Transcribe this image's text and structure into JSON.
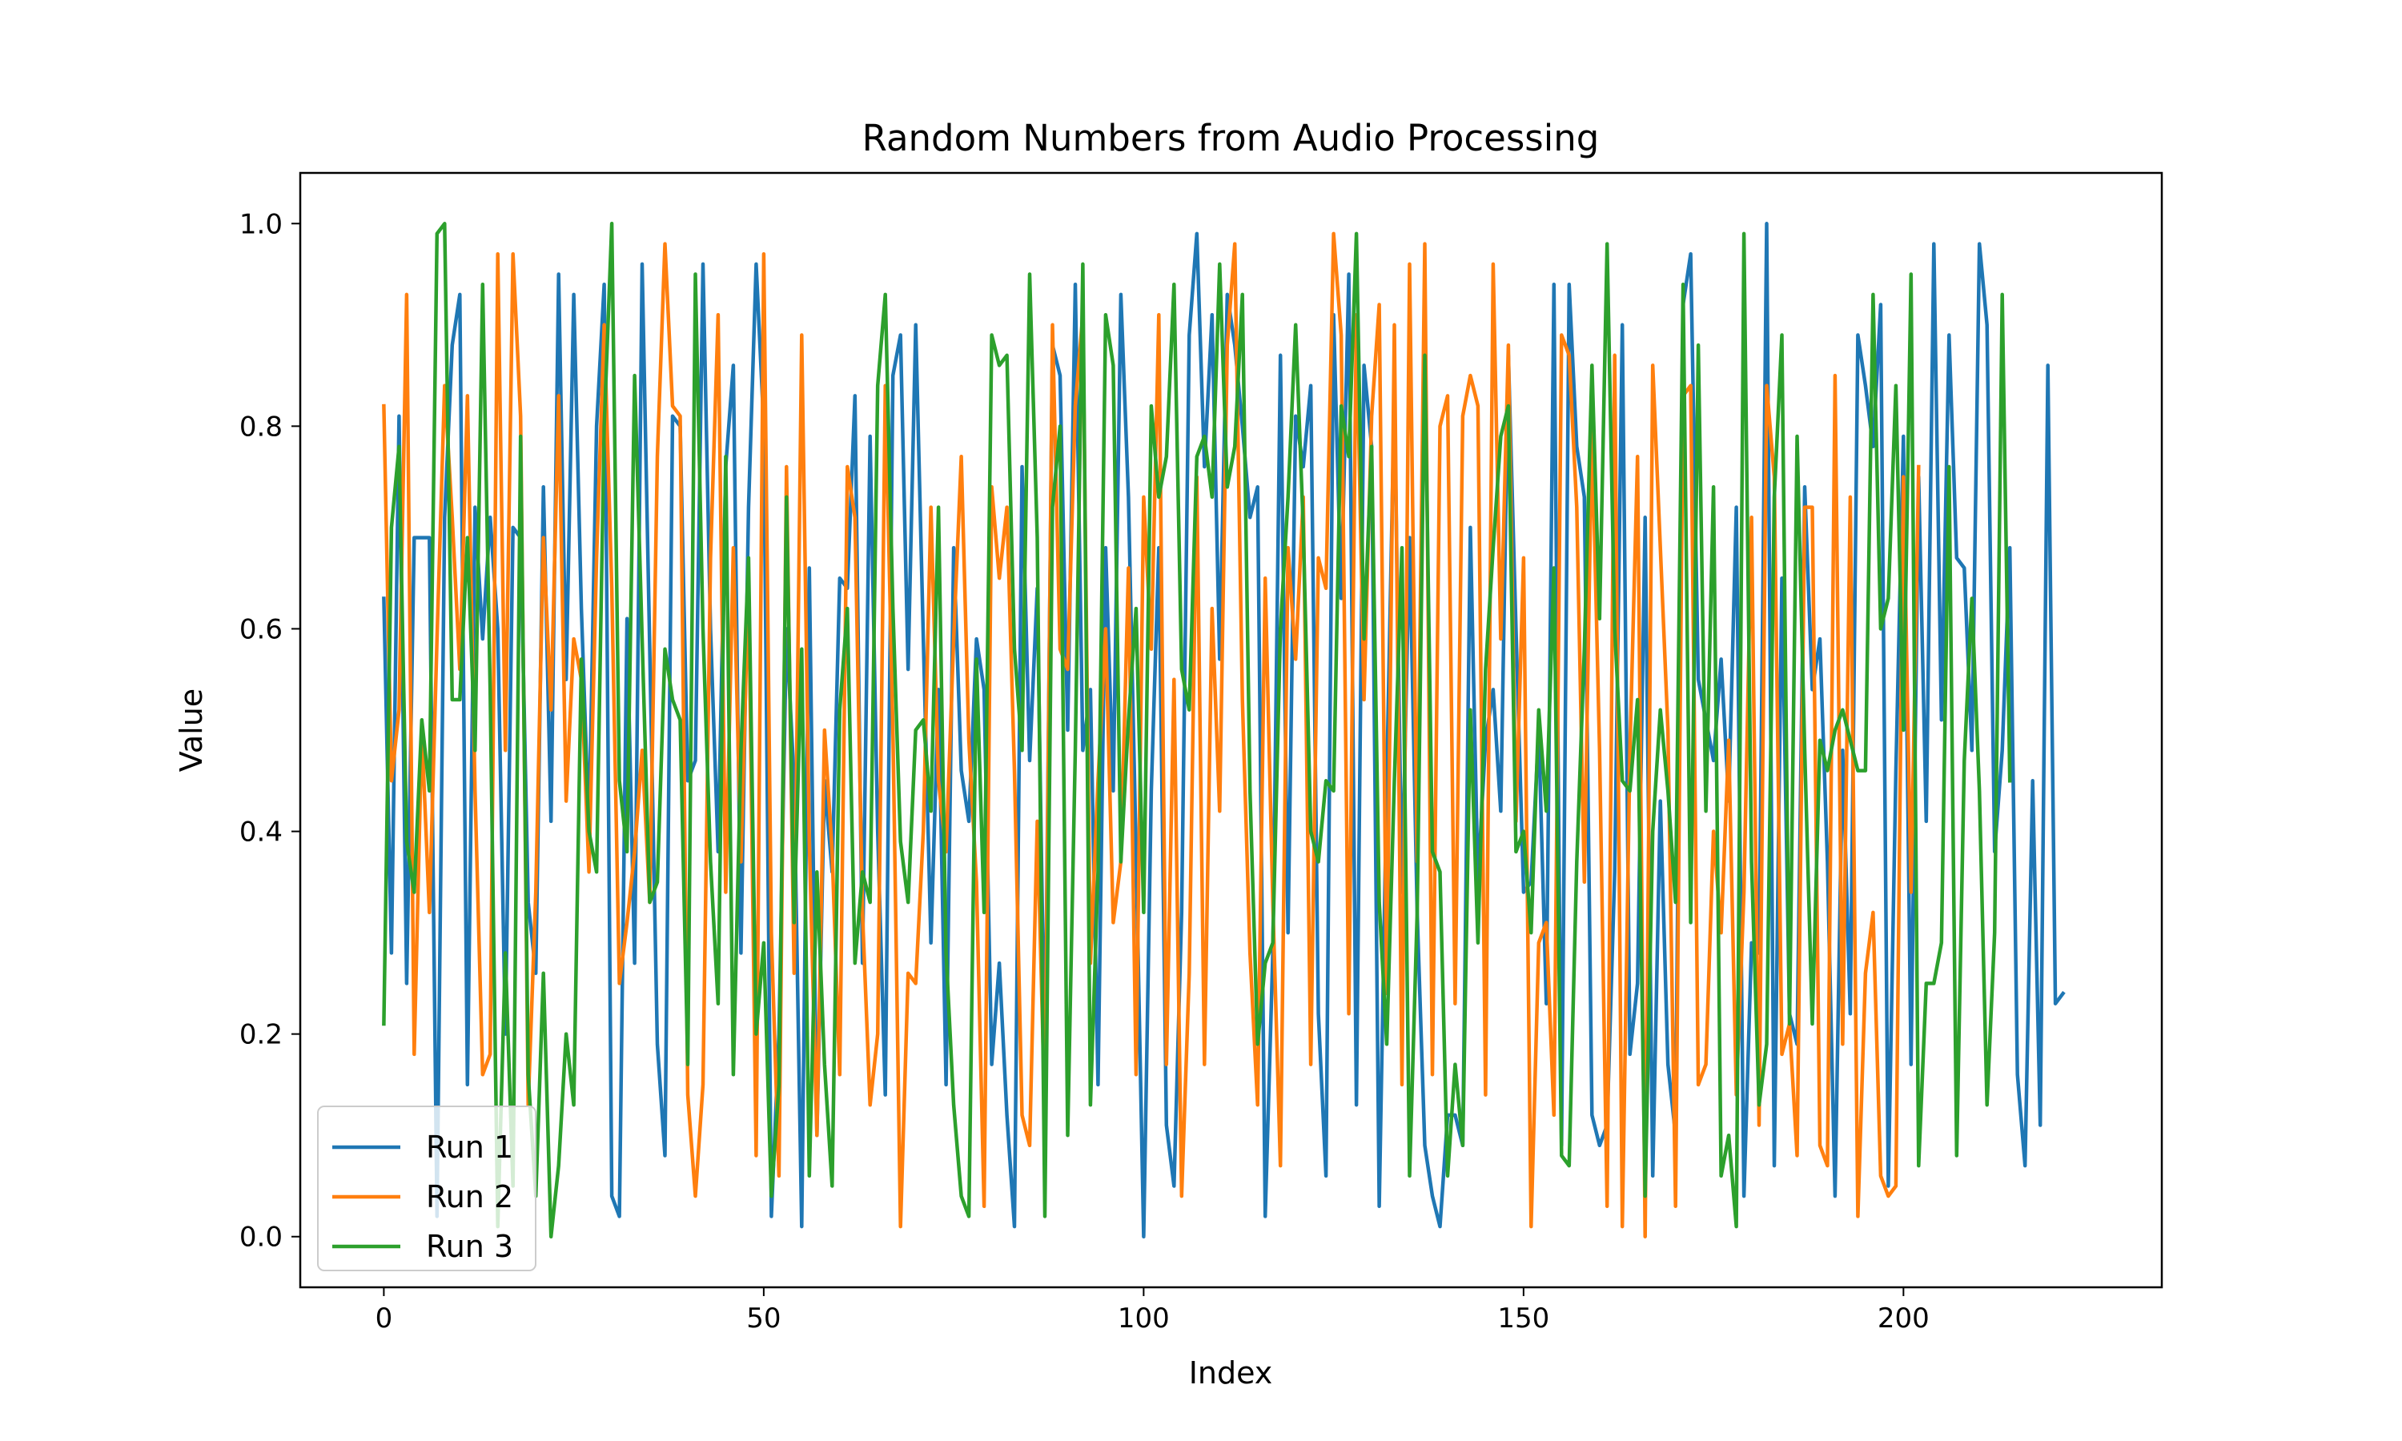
{
  "chart_data": {
    "type": "line",
    "title": "Random Numbers from Audio Processing",
    "xlabel": "Index",
    "ylabel": "Value",
    "xlim": [
      -11,
      234
    ],
    "ylim": [
      -0.05,
      1.05
    ],
    "xticks": [
      0,
      50,
      100,
      150,
      200
    ],
    "yticks": [
      0.0,
      0.2,
      0.4,
      0.6,
      0.8,
      1.0
    ],
    "ytick_labels": [
      "0.0",
      "0.2",
      "0.4",
      "0.6",
      "0.8",
      "1.0"
    ],
    "grid": false,
    "legend_position": "lower-left",
    "series": [
      {
        "name": "Run 1",
        "color": "#1f77b4",
        "values": [
          0.63,
          0.28,
          0.81,
          0.25,
          0.69,
          0.69,
          0.69,
          0.02,
          0.71,
          0.88,
          0.93,
          0.15,
          0.72,
          0.59,
          0.71,
          0.6,
          0.2,
          0.7,
          0.69,
          0.33,
          0.26,
          0.74,
          0.41,
          0.95,
          0.55,
          0.93,
          0.62,
          0.4,
          0.8,
          0.94,
          0.04,
          0.02,
          0.61,
          0.27,
          0.96,
          0.58,
          0.19,
          0.08,
          0.81,
          0.8,
          0.45,
          0.47,
          0.96,
          0.6,
          0.38,
          0.76,
          0.86,
          0.28,
          0.72,
          0.96,
          0.8,
          0.02,
          0.2,
          0.6,
          0.45,
          0.01,
          0.66,
          0.1,
          0.45,
          0.36,
          0.65,
          0.64,
          0.83,
          0.27,
          0.79,
          0.4,
          0.14,
          0.85,
          0.89,
          0.56,
          0.9,
          0.59,
          0.29,
          0.54,
          0.15,
          0.68,
          0.46,
          0.41,
          0.59,
          0.54,
          0.17,
          0.27,
          0.12,
          0.01,
          0.76,
          0.47,
          0.64,
          0.16,
          0.88,
          0.85,
          0.5,
          0.94,
          0.48,
          0.54,
          0.15,
          0.68,
          0.44,
          0.93,
          0.73,
          0.38,
          0.0,
          0.44,
          0.68,
          0.11,
          0.05,
          0.32,
          0.89,
          0.99,
          0.76,
          0.91,
          0.57,
          0.93,
          0.88,
          0.8,
          0.71,
          0.74,
          0.02,
          0.28,
          0.87,
          0.3,
          0.81,
          0.76,
          0.84,
          0.22,
          0.06,
          0.91,
          0.63,
          0.95,
          0.13,
          0.86,
          0.78,
          0.03,
          0.45,
          0.83,
          0.34,
          0.69,
          0.32,
          0.09,
          0.04,
          0.01,
          0.12,
          0.12,
          0.09,
          0.7,
          0.35,
          0.49,
          0.54,
          0.42,
          0.87,
          0.6,
          0.34,
          0.35,
          0.5,
          0.23,
          0.94,
          0.09,
          0.94,
          0.78,
          0.73,
          0.12,
          0.09,
          0.11,
          0.36,
          0.9,
          0.18,
          0.25,
          0.71,
          0.06,
          0.43,
          0.17,
          0.1,
          0.92,
          0.97,
          0.55,
          0.51,
          0.47,
          0.57,
          0.43,
          0.72,
          0.04,
          0.29,
          0.28,
          1.0,
          0.07,
          0.65,
          0.22,
          0.19,
          0.74,
          0.54,
          0.59,
          0.37,
          0.04,
          0.48,
          0.22,
          0.89,
          0.84,
          0.78,
          0.92,
          0.05,
          0.46,
          0.79,
          0.17,
          0.75,
          0.41,
          0.98,
          0.51,
          0.89,
          0.67,
          0.66,
          0.48,
          0.98,
          0.9,
          0.38,
          0.48,
          0.68,
          0.16,
          0.07,
          0.45,
          0.11,
          0.86,
          0.23,
          0.24
        ]
      },
      {
        "name": "Run 2",
        "color": "#ff7f0e",
        "values": [
          0.82,
          0.45,
          0.52,
          0.93,
          0.18,
          0.5,
          0.32,
          0.59,
          0.84,
          0.71,
          0.56,
          0.83,
          0.44,
          0.16,
          0.18,
          0.97,
          0.48,
          0.97,
          0.81,
          0.13,
          0.34,
          0.69,
          0.52,
          0.83,
          0.43,
          0.59,
          0.55,
          0.36,
          0.67,
          0.9,
          0.64,
          0.25,
          0.31,
          0.38,
          0.48,
          0.33,
          0.77,
          0.98,
          0.82,
          0.81,
          0.14,
          0.04,
          0.15,
          0.67,
          0.91,
          0.34,
          0.68,
          0.37,
          0.65,
          0.08,
          0.97,
          0.3,
          0.06,
          0.76,
          0.26,
          0.89,
          0.39,
          0.1,
          0.5,
          0.38,
          0.16,
          0.76,
          0.71,
          0.32,
          0.13,
          0.2,
          0.84,
          0.5,
          0.01,
          0.26,
          0.25,
          0.4,
          0.72,
          0.45,
          0.38,
          0.59,
          0.77,
          0.49,
          0.35,
          0.03,
          0.74,
          0.65,
          0.72,
          0.46,
          0.12,
          0.09,
          0.41,
          0.12,
          0.9,
          0.58,
          0.56,
          0.82,
          0.91,
          0.27,
          0.45,
          0.6,
          0.31,
          0.37,
          0.66,
          0.16,
          0.73,
          0.58,
          0.91,
          0.17,
          0.55,
          0.04,
          0.26,
          0.75,
          0.17,
          0.62,
          0.42,
          0.88,
          0.98,
          0.53,
          0.28,
          0.13,
          0.65,
          0.33,
          0.07,
          0.68,
          0.57,
          0.73,
          0.17,
          0.67,
          0.64,
          0.99,
          0.89,
          0.22,
          0.91,
          0.53,
          0.81,
          0.92,
          0.24,
          0.9,
          0.15,
          0.96,
          0.37,
          0.98,
          0.16,
          0.8,
          0.83,
          0.23,
          0.81,
          0.85,
          0.82,
          0.14,
          0.96,
          0.59,
          0.88,
          0.41,
          0.67,
          0.01,
          0.29,
          0.31,
          0.12,
          0.89,
          0.87,
          0.72,
          0.35,
          0.8,
          0.48,
          0.03,
          0.87,
          0.01,
          0.48,
          0.77,
          0.0,
          0.86,
          0.68,
          0.5,
          0.03,
          0.83,
          0.84,
          0.15,
          0.17,
          0.4,
          0.3,
          0.49,
          0.14,
          0.34,
          0.71,
          0.11,
          0.84,
          0.75,
          0.18,
          0.21,
          0.08,
          0.72,
          0.72,
          0.09,
          0.07,
          0.85,
          0.19,
          0.73,
          0.02,
          0.26,
          0.32,
          0.06,
          0.04,
          0.05,
          0.75,
          0.34,
          0.76
        ]
      },
      {
        "name": "Run 3",
        "color": "#2ca02c",
        "values": [
          0.21,
          0.7,
          0.78,
          0.39,
          0.34,
          0.51,
          0.44,
          0.99,
          1.0,
          0.53,
          0.53,
          0.69,
          0.48,
          0.94,
          0.54,
          0.01,
          0.28,
          0.05,
          0.79,
          0.16,
          0.04,
          0.26,
          0.0,
          0.07,
          0.2,
          0.13,
          0.57,
          0.4,
          0.36,
          0.8,
          1.0,
          0.45,
          0.38,
          0.85,
          0.59,
          0.33,
          0.35,
          0.58,
          0.53,
          0.51,
          0.17,
          0.95,
          0.6,
          0.37,
          0.23,
          0.77,
          0.16,
          0.48,
          0.67,
          0.2,
          0.29,
          0.04,
          0.15,
          0.73,
          0.31,
          0.58,
          0.06,
          0.36,
          0.17,
          0.05,
          0.52,
          0.62,
          0.27,
          0.36,
          0.33,
          0.84,
          0.93,
          0.62,
          0.39,
          0.33,
          0.5,
          0.51,
          0.42,
          0.72,
          0.28,
          0.13,
          0.04,
          0.02,
          0.57,
          0.32,
          0.89,
          0.86,
          0.87,
          0.58,
          0.48,
          0.95,
          0.69,
          0.02,
          0.72,
          0.8,
          0.1,
          0.48,
          0.96,
          0.13,
          0.36,
          0.91,
          0.86,
          0.37,
          0.51,
          0.62,
          0.32,
          0.82,
          0.73,
          0.77,
          0.94,
          0.56,
          0.52,
          0.77,
          0.79,
          0.73,
          0.96,
          0.74,
          0.78,
          0.93,
          0.44,
          0.19,
          0.27,
          0.29,
          0.6,
          0.73,
          0.9,
          0.7,
          0.4,
          0.37,
          0.45,
          0.44,
          0.82,
          0.77,
          0.99,
          0.59,
          0.78,
          0.33,
          0.19,
          0.45,
          0.68,
          0.06,
          0.32,
          0.87,
          0.38,
          0.36,
          0.06,
          0.17,
          0.09,
          0.52,
          0.29,
          0.56,
          0.68,
          0.79,
          0.82,
          0.38,
          0.4,
          0.3,
          0.52,
          0.42,
          0.66,
          0.08,
          0.07,
          0.37,
          0.58,
          0.86,
          0.61,
          0.98,
          0.6,
          0.45,
          0.44,
          0.53,
          0.04,
          0.4,
          0.52,
          0.44,
          0.33,
          0.94,
          0.31,
          0.88,
          0.42,
          0.74,
          0.06,
          0.1,
          0.01,
          0.99,
          0.37,
          0.13,
          0.19,
          0.73,
          0.89,
          0.21,
          0.79,
          0.48,
          0.21,
          0.49,
          0.46,
          0.5,
          0.52,
          0.49,
          0.46,
          0.46,
          0.93,
          0.6,
          0.63,
          0.84,
          0.5,
          0.95,
          0.07,
          0.25,
          0.25,
          0.29,
          0.76,
          0.08,
          0.47,
          0.63,
          0.44,
          0.13,
          0.3,
          0.93,
          0.45
        ]
      }
    ]
  }
}
